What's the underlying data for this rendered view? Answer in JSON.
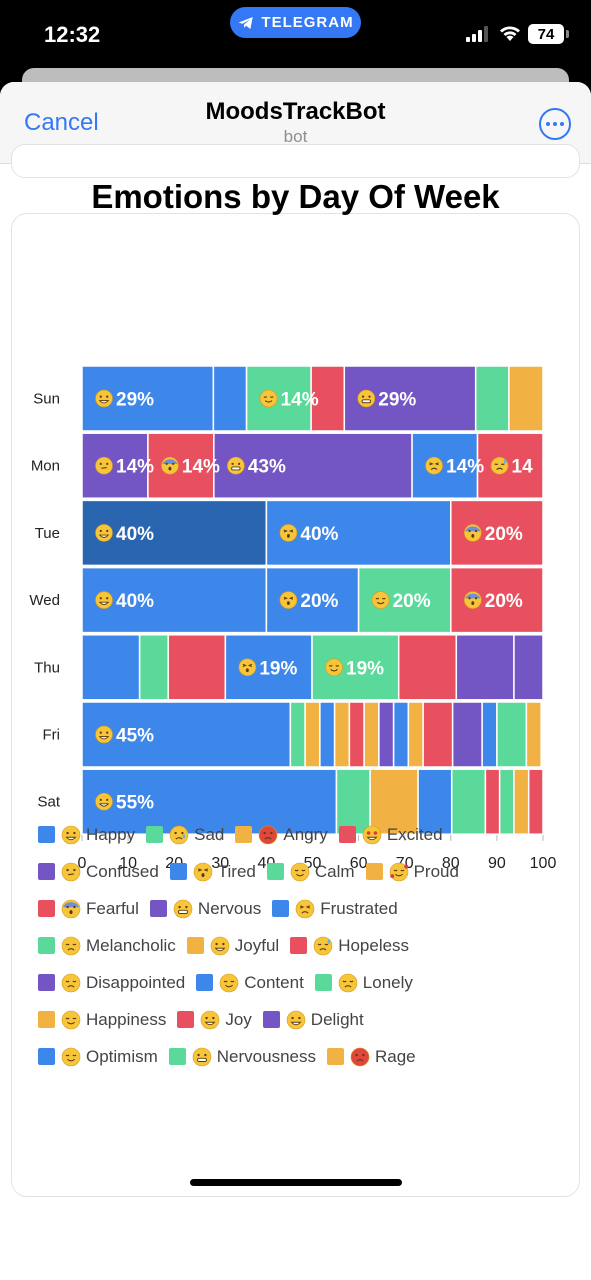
{
  "status": {
    "time": "12:32",
    "pill": "TELEGRAM",
    "battery": "74"
  },
  "nav": {
    "cancel": "Cancel",
    "title": "MoodsTrackBot",
    "subtitle": "bot"
  },
  "colors": {
    "blue": "#3e87ea",
    "green": "#5ad99a",
    "yellow": "#f2b143",
    "red": "#e9505f",
    "purple": "#7455c4",
    "dark_blue": "#2a66b0"
  },
  "chart_data": {
    "type": "bar",
    "orientation": "horizontal",
    "stacked": true,
    "title": "Emotions by Day Of Week",
    "xlim": [
      0,
      100
    ],
    "xticks": [
      0,
      10,
      20,
      30,
      40,
      50,
      60,
      70,
      80,
      90,
      100
    ],
    "categories": [
      "Sun",
      "Mon",
      "Tue",
      "Wed",
      "Thu",
      "Fri",
      "Sat"
    ],
    "rows": [
      {
        "day": "Sun",
        "segments": [
          {
            "v": 28.5,
            "c": "blue",
            "label": "29%",
            "emoji": "happy"
          },
          {
            "v": 7.2,
            "c": "blue"
          },
          {
            "v": 14,
            "c": "green",
            "label": "14%",
            "emoji": "calm"
          },
          {
            "v": 7.2,
            "c": "red"
          },
          {
            "v": 28.5,
            "c": "purple",
            "label": "29%",
            "emoji": "grimace"
          },
          {
            "v": 7.2,
            "c": "green"
          },
          {
            "v": 7.4,
            "c": "yellow"
          }
        ]
      },
      {
        "day": "Mon",
        "segments": [
          {
            "v": 14.3,
            "c": "purple",
            "label": "14%",
            "emoji": "confused"
          },
          {
            "v": 14.3,
            "c": "red",
            "label": "14%",
            "emoji": "fearful"
          },
          {
            "v": 43,
            "c": "purple",
            "label": "43%",
            "emoji": "grimace"
          },
          {
            "v": 14.2,
            "c": "blue",
            "label": "14%",
            "emoji": "frustrated"
          },
          {
            "v": 14.2,
            "c": "red",
            "label": "14",
            "emoji": "hopeless"
          }
        ]
      },
      {
        "day": "Tue",
        "segments": [
          {
            "v": 40,
            "c": "dark_blue",
            "label": "40%",
            "emoji": "happy"
          },
          {
            "v": 40,
            "c": "blue",
            "label": "40%",
            "emoji": "tired"
          },
          {
            "v": 20,
            "c": "red",
            "label": "20%",
            "emoji": "fearful"
          }
        ]
      },
      {
        "day": "Wed",
        "segments": [
          {
            "v": 40,
            "c": "blue",
            "label": "40%",
            "emoji": "happy"
          },
          {
            "v": 20,
            "c": "blue",
            "label": "20%",
            "emoji": "tired"
          },
          {
            "v": 20,
            "c": "green",
            "label": "20%",
            "emoji": "calm"
          },
          {
            "v": 20,
            "c": "red",
            "label": "20%",
            "emoji": "fearful"
          }
        ]
      },
      {
        "day": "Thu",
        "segments": [
          {
            "v": 12.5,
            "c": "blue"
          },
          {
            "v": 6.2,
            "c": "green"
          },
          {
            "v": 12.4,
            "c": "red"
          },
          {
            "v": 18.8,
            "c": "blue",
            "label": "19%",
            "emoji": "tired"
          },
          {
            "v": 18.8,
            "c": "green",
            "label": "19%",
            "emoji": "calm"
          },
          {
            "v": 12.5,
            "c": "red"
          },
          {
            "v": 12.5,
            "c": "purple"
          },
          {
            "v": 6.3,
            "c": "purple"
          }
        ]
      },
      {
        "day": "Fri",
        "segments": [
          {
            "v": 45.2,
            "c": "blue",
            "label": "45%",
            "emoji": "happy"
          },
          {
            "v": 3.2,
            "c": "green"
          },
          {
            "v": 3.2,
            "c": "yellow"
          },
          {
            "v": 3.2,
            "c": "blue"
          },
          {
            "v": 3.2,
            "c": "yellow"
          },
          {
            "v": 3.2,
            "c": "red"
          },
          {
            "v": 3.2,
            "c": "yellow"
          },
          {
            "v": 3.2,
            "c": "purple"
          },
          {
            "v": 3.2,
            "c": "blue"
          },
          {
            "v": 3.2,
            "c": "yellow"
          },
          {
            "v": 6.4,
            "c": "red"
          },
          {
            "v": 6.4,
            "c": "purple"
          },
          {
            "v": 3.2,
            "c": "blue"
          },
          {
            "v": 6.4,
            "c": "green"
          },
          {
            "v": 3.2,
            "c": "yellow"
          }
        ]
      },
      {
        "day": "Sat",
        "segments": [
          {
            "v": 55.2,
            "c": "blue",
            "label": "55%",
            "emoji": "happy"
          },
          {
            "v": 7.3,
            "c": "green"
          },
          {
            "v": 10.4,
            "c": "yellow"
          },
          {
            "v": 7.3,
            "c": "blue"
          },
          {
            "v": 7.3,
            "c": "green"
          },
          {
            "v": 3.1,
            "c": "red"
          },
          {
            "v": 3.1,
            "c": "green"
          },
          {
            "v": 3.2,
            "c": "yellow"
          },
          {
            "v": 3.1,
            "c": "red"
          }
        ]
      }
    ],
    "legend": [
      {
        "name": "Happy",
        "c": "blue",
        "emoji": "happy"
      },
      {
        "name": "Sad",
        "c": "green",
        "emoji": "sad"
      },
      {
        "name": "Angry",
        "c": "yellow",
        "emoji": "angry"
      },
      {
        "name": "Excited",
        "c": "red",
        "emoji": "excited"
      },
      {
        "name": "Confused",
        "c": "purple",
        "emoji": "confused"
      },
      {
        "name": "Tired",
        "c": "blue",
        "emoji": "tired"
      },
      {
        "name": "Calm",
        "c": "green",
        "emoji": "calm"
      },
      {
        "name": "Proud",
        "c": "yellow",
        "emoji": "proud"
      },
      {
        "name": "Fearful",
        "c": "red",
        "emoji": "fearful"
      },
      {
        "name": "Nervous",
        "c": "purple",
        "emoji": "grimace"
      },
      {
        "name": "Frustrated",
        "c": "blue",
        "emoji": "frustrated"
      },
      {
        "name": "Melancholic",
        "c": "green",
        "emoji": "pensive"
      },
      {
        "name": "Joyful",
        "c": "yellow",
        "emoji": "happy"
      },
      {
        "name": "Hopeless",
        "c": "red",
        "emoji": "hopeless"
      },
      {
        "name": "Disappointed",
        "c": "purple",
        "emoji": "pensive"
      },
      {
        "name": "Content",
        "c": "blue",
        "emoji": "smile"
      },
      {
        "name": "Lonely",
        "c": "green",
        "emoji": "pensive"
      },
      {
        "name": "Happiness",
        "c": "yellow",
        "emoji": "smile"
      },
      {
        "name": "Joy",
        "c": "red",
        "emoji": "happy"
      },
      {
        "name": "Delight",
        "c": "purple",
        "emoji": "happy"
      },
      {
        "name": "Optimism",
        "c": "blue",
        "emoji": "smile"
      },
      {
        "name": "Nervousness",
        "c": "green",
        "emoji": "grimace"
      },
      {
        "name": "Rage",
        "c": "yellow",
        "emoji": "angry"
      }
    ]
  }
}
